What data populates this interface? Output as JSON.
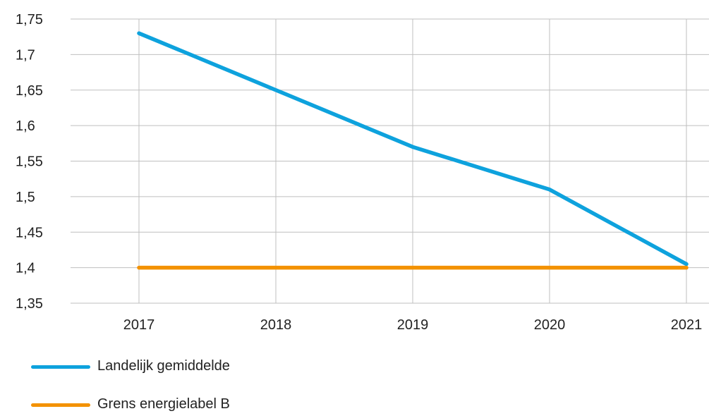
{
  "chart_data": {
    "type": "line",
    "x": [
      "2017",
      "2018",
      "2019",
      "2020",
      "2021"
    ],
    "ylim": [
      1.35,
      1.75
    ],
    "yticks": [
      "1,35",
      "1,4",
      "1,45",
      "1,5",
      "1,55",
      "1,6",
      "1,65",
      "1,7",
      "1,75"
    ],
    "ytick_values": [
      1.35,
      1.4,
      1.45,
      1.5,
      1.55,
      1.6,
      1.65,
      1.7,
      1.75
    ],
    "grid": true,
    "legend_position": "bottom-left",
    "series": [
      {
        "name": "Landelijk gemiddelde",
        "color": "#0ea2dd",
        "values": [
          1.73,
          1.65,
          1.57,
          1.51,
          1.405
        ]
      },
      {
        "name": "Grens energielabel B",
        "color": "#f39200",
        "values": [
          1.4,
          1.4,
          1.4,
          1.4,
          1.4
        ]
      }
    ],
    "title": "",
    "xlabel": "",
    "ylabel": ""
  }
}
